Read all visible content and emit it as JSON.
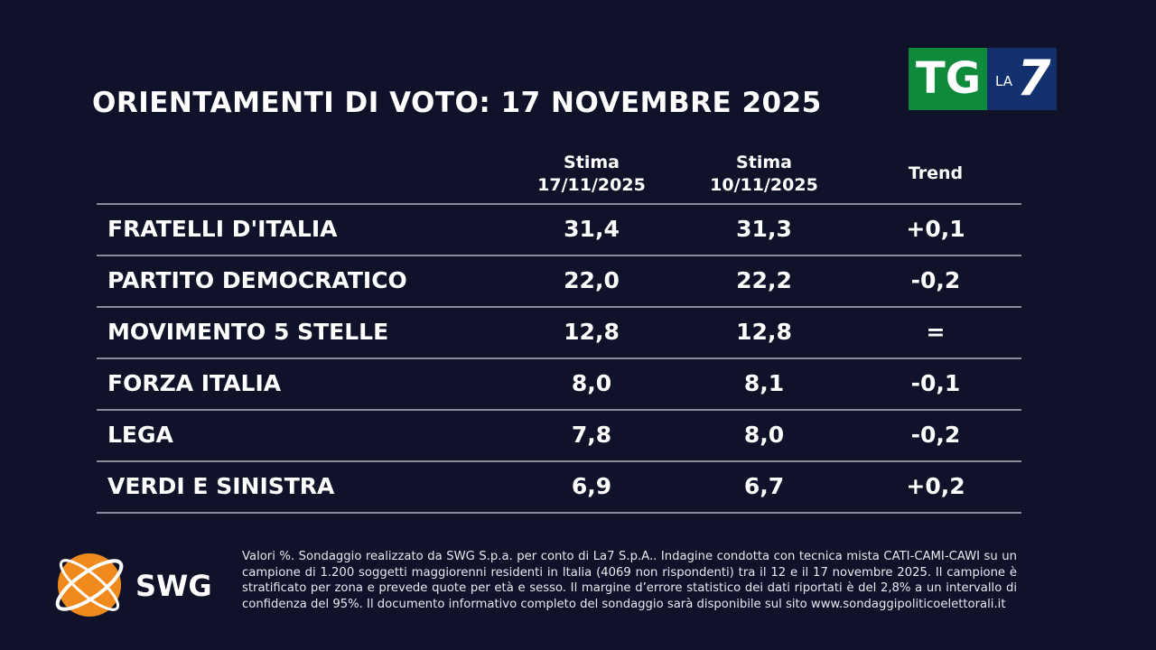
{
  "header": {
    "title": "ORIENTAMENTI DI VOTO: 17 NOVEMBRE 2025",
    "logo": {
      "tg": "TG",
      "la": "LA",
      "seven": "7"
    }
  },
  "table": {
    "columns": [
      [
        "Stima",
        "17/11/2025"
      ],
      [
        "Stima",
        "10/11/2025"
      ],
      [
        "Trend"
      ]
    ],
    "rows": [
      [
        "FRATELLI D'ITALIA",
        "31,4",
        "31,3",
        "+0,1"
      ],
      [
        "PARTITO DEMOCRATICO",
        "22,0",
        "22,2",
        "-0,2"
      ],
      [
        "MOVIMENTO 5 STELLE",
        "12,8",
        "12,8",
        "="
      ],
      [
        "FORZA ITALIA",
        "8,0",
        "8,1",
        "-0,1"
      ],
      [
        "LEGA",
        "7,8",
        "8,0",
        "-0,2"
      ],
      [
        "VERDI E SINISTRA",
        "6,9",
        "6,7",
        "+0,2"
      ]
    ]
  },
  "footer": {
    "logo": "SWG",
    "note": "Valori %. Sondaggio realizzato da SWG S.p.a. per conto di La7 S.p.A.. Indagine condotta con tecnica mista CATI-CAMI-CAWI su un campione di 1.200 soggetti maggiorenni residenti in Italia (4069 non rispondenti) tra il 12 e il 17 novembre 2025. Il campione è stratificato per zona e prevede quote per età e sesso. Il margine d’errore statistico dei dati riportati è del 2,8% a un intervallo di confidenza del 95%. Il documento informativo completo del sondaggio sarà disponibile sul sito www.sondaggipoliticoelettorali.it"
  }
}
